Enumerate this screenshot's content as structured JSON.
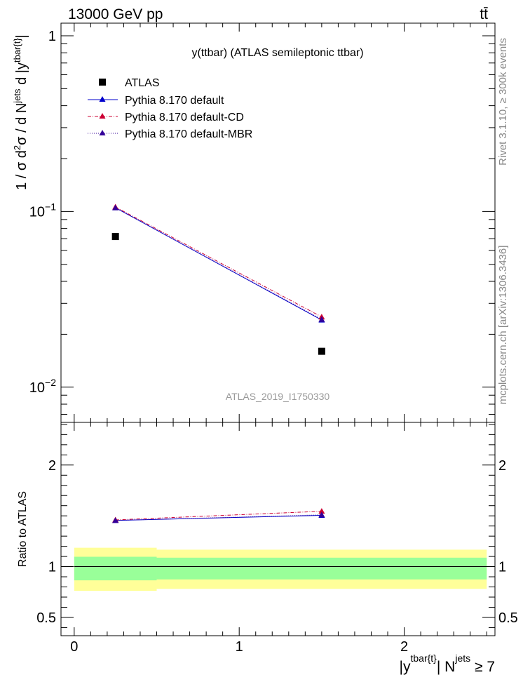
{
  "header": {
    "energy_label": "13000 GeV pp",
    "process_label": "tt̄"
  },
  "side_labels": {
    "rivet": "Rivet 3.1.10, ≥ 300k events",
    "mcplots": "mcplots.cern.ch [arXiv:1306.3436]"
  },
  "colors": {
    "data": "#000000",
    "default": "#0000cc",
    "cd": "#cc0033",
    "mbr": "#330099",
    "band_outer": "#ffff99",
    "band_inner": "#99ff99",
    "analysis_id": "#999999"
  },
  "chart_data": [
    {
      "type": "scatter",
      "yscale": "log",
      "title": "y(ttbar) (ATLAS semileptonic ttbar)",
      "analysis_id": "ATLAS_2019_I1750330",
      "ylabel": {
        "main": "1 / σ d",
        "sup_2a": "2",
        "mid": "σ / d N",
        "sup_jets": "jets",
        "mid2": " d |y",
        "sup_tbar": "tbar{t}",
        "end": "|"
      },
      "xlim": [
        -0.08,
        2.55
      ],
      "ylim": [
        0.0063,
        1.18
      ],
      "yticks": [
        {
          "value": 1,
          "base": "1",
          "exp": ""
        },
        {
          "value": 0.1,
          "base": "10",
          "exp": "−1"
        },
        {
          "value": 0.01,
          "base": "10",
          "exp": "−2"
        }
      ],
      "legend": [
        {
          "key": "data",
          "label": "ATLAS"
        },
        {
          "key": "default",
          "label": "Pythia 8.170 default"
        },
        {
          "key": "cd",
          "label": "Pythia 8.170 default-CD"
        },
        {
          "key": "mbr",
          "label": "Pythia 8.170 default-MBR"
        }
      ],
      "series": [
        {
          "name": "ATLAS",
          "key": "data",
          "x": [
            0.25,
            1.5
          ],
          "y": [
            0.072,
            0.016
          ]
        },
        {
          "name": "Pythia 8.170 default",
          "key": "default",
          "x": [
            0.25,
            1.5
          ],
          "y": [
            0.105,
            0.0241
          ]
        },
        {
          "name": "Pythia 8.170 default-CD",
          "key": "cd",
          "x": [
            0.25,
            1.5
          ],
          "y": [
            0.106,
            0.0251
          ]
        },
        {
          "name": "Pythia 8.170 default-MBR",
          "key": "mbr",
          "x": [
            0.25,
            1.5
          ],
          "y": [
            0.105,
            0.0243
          ]
        }
      ]
    },
    {
      "type": "line",
      "ylabel": "Ratio to ATLAS",
      "xlabel": {
        "main": "|y",
        "sup": "tbar{t}",
        "mid": "| N",
        "sup2": "jets",
        "end": " ≥ 7"
      },
      "xlim": [
        -0.08,
        2.55
      ],
      "ylim": [
        0.32,
        2.42
      ],
      "xticks": [
        {
          "value": 0,
          "label": "0"
        },
        {
          "value": 1,
          "label": "1"
        },
        {
          "value": 2,
          "label": "2"
        }
      ],
      "yticks": [
        {
          "value": 0.5,
          "label": "0.5"
        },
        {
          "value": 1,
          "label": "1"
        },
        {
          "value": 2,
          "label": "2"
        }
      ],
      "bands": [
        {
          "x0": 0,
          "x1": 0.5,
          "outer": [
            0.762,
            1.186
          ],
          "inner": [
            0.865,
            1.097
          ]
        },
        {
          "x0": 0.5,
          "x1": 2.5,
          "outer": [
            0.781,
            1.167
          ],
          "inner": [
            0.874,
            1.088
          ]
        }
      ],
      "series": [
        {
          "name": "Pythia 8.170 default",
          "key": "default",
          "x": [
            0.25,
            1.5
          ],
          "y": [
            1.455,
            1.505
          ]
        },
        {
          "name": "Pythia 8.170 default-CD",
          "key": "cd",
          "x": [
            0.25,
            1.5
          ],
          "y": [
            1.46,
            1.545
          ]
        },
        {
          "name": "Pythia 8.170 default-MBR",
          "key": "mbr",
          "x": [
            0.25,
            1.5
          ],
          "y": [
            1.455,
            1.51
          ]
        }
      ]
    }
  ]
}
